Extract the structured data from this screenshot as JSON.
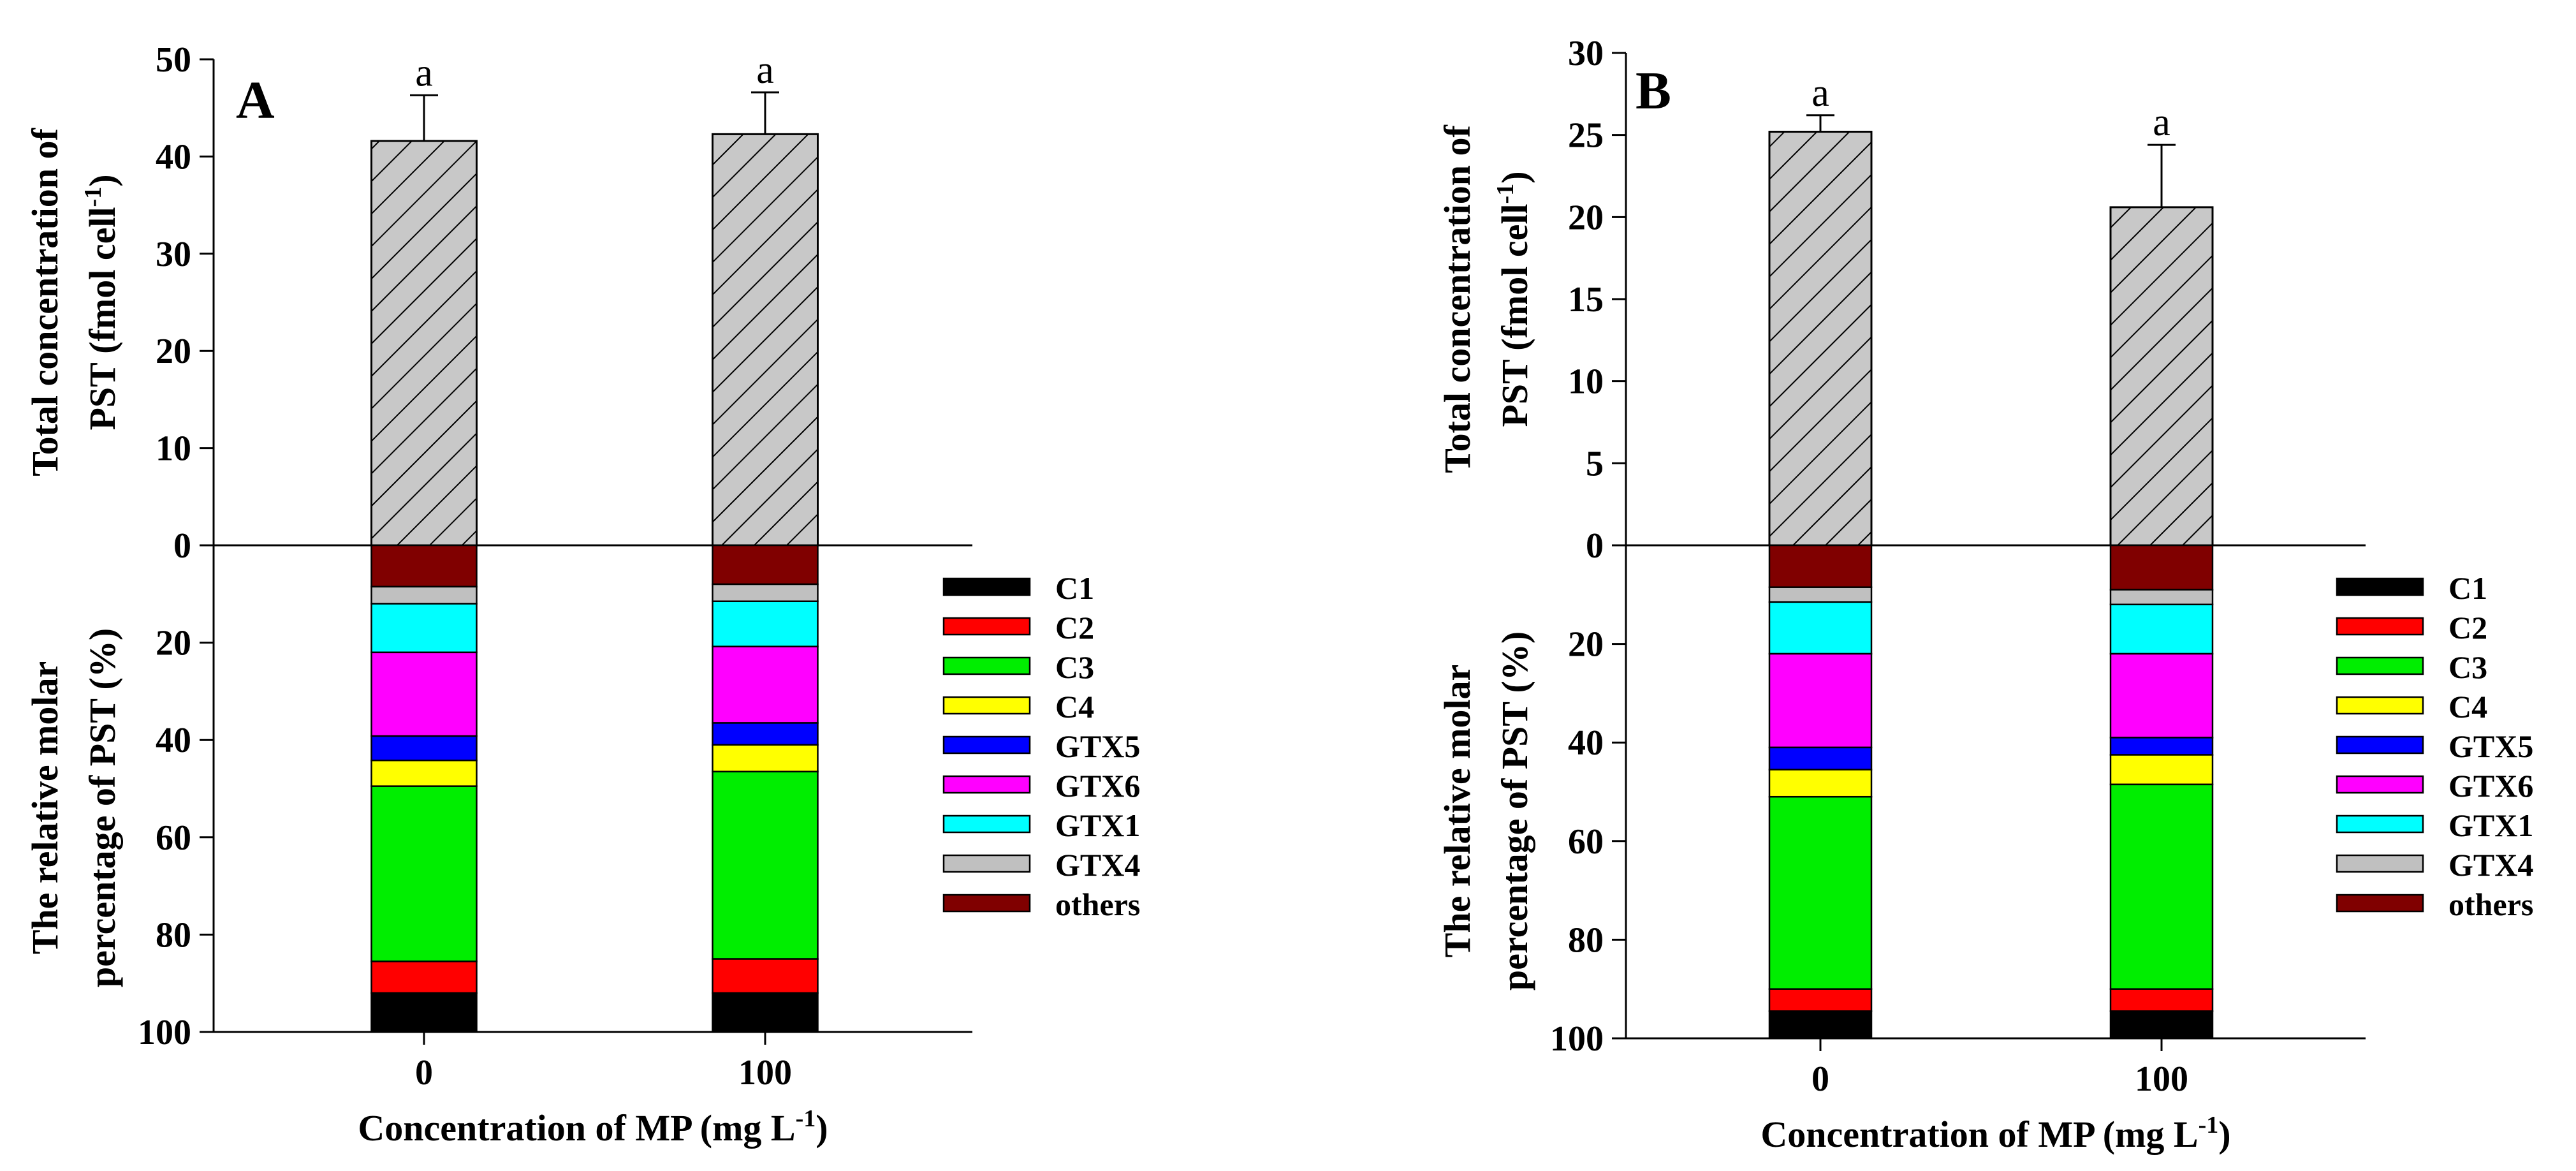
{
  "chart_data": [
    {
      "type": "bar",
      "subtype": "stacked-bar-with-total",
      "panel_label": "A",
      "categories": [
        "0",
        "100"
      ],
      "xlabel": "Concentration of MP (mg L-1)",
      "xlabel_main": "Concentration of MP (mg L",
      "xlabel_sup": "-1",
      "xlabel_close": ")",
      "top_ylabel_line1": "Total concentration of",
      "top_ylabel_line2_main": "PST (fmol cell",
      "top_ylabel_line2_sup": "-1",
      "top_ylabel_line2_close": ")",
      "top_ylim": [
        0,
        50
      ],
      "top_yticks": [
        "0",
        "10",
        "20",
        "30",
        "40",
        "50"
      ],
      "totals": [
        41.6,
        42.3
      ],
      "total_errors": [
        4.7,
        4.3
      ],
      "significance": [
        "a",
        "a"
      ],
      "bottom_ylabel_line1": "The relative molar",
      "bottom_ylabel_line2": "percentage  of PST (%)",
      "bottom_ylim": [
        0,
        100
      ],
      "bottom_yticks": [
        "0",
        "20",
        "40",
        "60",
        "80",
        "100"
      ],
      "series": [
        {
          "name": "others",
          "values": [
            8.5,
            8.0
          ]
        },
        {
          "name": "GTX4",
          "values": [
            3.5,
            3.5
          ]
        },
        {
          "name": "GTX1",
          "values": [
            10.0,
            9.3
          ]
        },
        {
          "name": "GTX6",
          "values": [
            17.2,
            15.7
          ]
        },
        {
          "name": "GTX5",
          "values": [
            5.0,
            4.5
          ]
        },
        {
          "name": "C4",
          "values": [
            5.3,
            5.5
          ]
        },
        {
          "name": "C3",
          "values": [
            36.0,
            38.5
          ]
        },
        {
          "name": "C2",
          "values": [
            6.5,
            7.0
          ]
        },
        {
          "name": "C1",
          "values": [
            8.0,
            8.0
          ]
        }
      ]
    },
    {
      "type": "bar",
      "subtype": "stacked-bar-with-total",
      "panel_label": "B",
      "categories": [
        "0",
        "100"
      ],
      "xlabel": "Concentration of MP (mg L-1)",
      "xlabel_main": "Concentration of MP (mg L",
      "xlabel_sup": "-1",
      "xlabel_close": ")",
      "top_ylabel_line1": "Total concentration of",
      "top_ylabel_line2_main": "PST (fmol cell",
      "top_ylabel_line2_sup": "-1",
      "top_ylabel_line2_close": ")",
      "top_ylim": [
        0,
        30
      ],
      "top_yticks": [
        "0",
        "5",
        "10",
        "15",
        "20",
        "25",
        "30"
      ],
      "totals": [
        25.2,
        20.6
      ],
      "total_errors": [
        1.0,
        3.8
      ],
      "significance": [
        "a",
        "a"
      ],
      "bottom_ylabel_line1": "The relative molar",
      "bottom_ylabel_line2": "percentage  of PST (%)",
      "bottom_ylim": [
        0,
        100
      ],
      "bottom_yticks": [
        "0",
        "20",
        "40",
        "60",
        "80",
        "100"
      ],
      "series": [
        {
          "name": "others",
          "values": [
            8.5,
            9.0
          ]
        },
        {
          "name": "GTX4",
          "values": [
            3.0,
            3.0
          ]
        },
        {
          "name": "GTX1",
          "values": [
            10.5,
            10.0
          ]
        },
        {
          "name": "GTX6",
          "values": [
            19.0,
            17.0
          ]
        },
        {
          "name": "GTX5",
          "values": [
            4.5,
            3.5
          ]
        },
        {
          "name": "C4",
          "values": [
            5.5,
            6.0
          ]
        },
        {
          "name": "C3",
          "values": [
            39.0,
            41.5
          ]
        },
        {
          "name": "C2",
          "values": [
            4.5,
            4.5
          ]
        },
        {
          "name": "C1",
          "values": [
            5.5,
            5.5
          ]
        }
      ]
    }
  ],
  "legend": {
    "placement": "right",
    "items": [
      {
        "name": "C1",
        "color": "#000000"
      },
      {
        "name": "C2",
        "color": "#ff0000"
      },
      {
        "name": "C3",
        "color": "#00ee00"
      },
      {
        "name": "C4",
        "color": "#ffff00"
      },
      {
        "name": "GTX5",
        "color": "#0000ff"
      },
      {
        "name": "GTX6",
        "color": "#ff00ff"
      },
      {
        "name": "GTX1",
        "color": "#00ffff"
      },
      {
        "name": "GTX4",
        "color": "#c0c0c0"
      },
      {
        "name": "others",
        "color": "#800000"
      }
    ]
  },
  "colors": {
    "total_bar_fill": "#c8c8c8",
    "hatch_stroke": "#000000"
  }
}
